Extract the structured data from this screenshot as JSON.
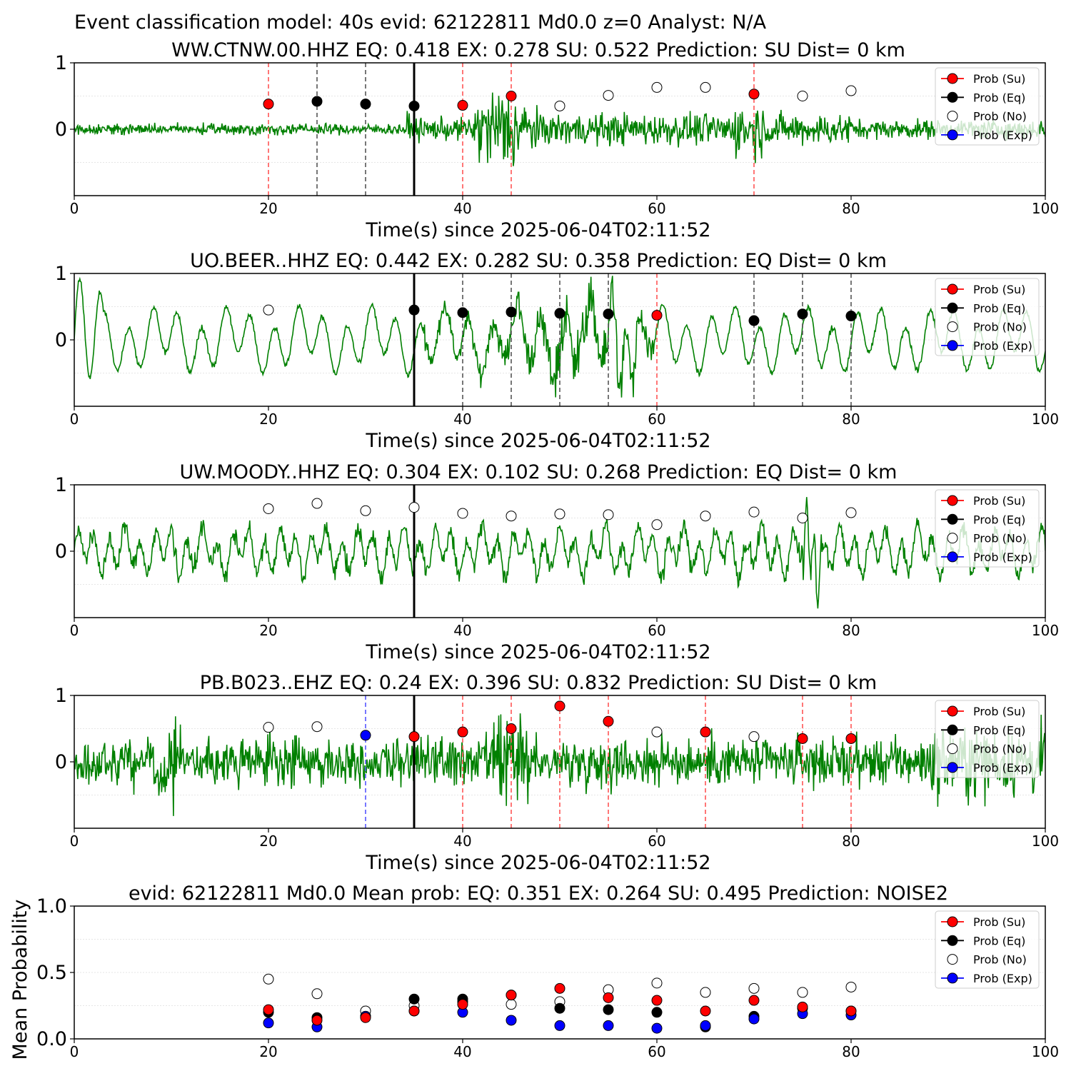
{
  "suptitle": "Event classification model: 40s evid: 62122811 Md0.0 z=0 Analyst: N/A",
  "colors": {
    "trace": "#008000",
    "su": "#ff0000",
    "eq": "#000000",
    "no": "#ffffff",
    "exp": "#0000ff",
    "su_line": "#ff5555",
    "eq_line": "#555555",
    "exp_line": "#5555ff",
    "pick_line": "#000000"
  },
  "legend": [
    "Prob (Su)",
    "Prob (Eq)",
    "Prob (No)",
    "Prob (Exp)"
  ],
  "chart_data": [
    {
      "type": "scatter",
      "title": "WW.CTNW.00.HHZ   EQ: 0.418  EX: 0.278  SU: 0.522   Prediction: SU    Dist= 0 km",
      "xlabel": "Time(s) since 2025-06-04T02:11:52",
      "xlim": [
        0,
        100
      ],
      "ylim": [
        -1,
        1
      ],
      "xticks": [
        "0",
        "20",
        "40",
        "60",
        "80",
        "100"
      ],
      "yticks": [
        "1",
        "0"
      ],
      "pick_time": 35,
      "trace_style": "high-frequency",
      "points": [
        {
          "x": 20,
          "y": 0.38,
          "class": "su"
        },
        {
          "x": 25,
          "y": 0.42,
          "class": "eq"
        },
        {
          "x": 30,
          "y": 0.38,
          "class": "eq"
        },
        {
          "x": 35,
          "y": 0.35,
          "class": "eq"
        },
        {
          "x": 40,
          "y": 0.36,
          "class": "su"
        },
        {
          "x": 45,
          "y": 0.5,
          "class": "su"
        },
        {
          "x": 50,
          "y": 0.35,
          "class": "no"
        },
        {
          "x": 55,
          "y": 0.51,
          "class": "no"
        },
        {
          "x": 60,
          "y": 0.63,
          "class": "no"
        },
        {
          "x": 65,
          "y": 0.63,
          "class": "no"
        },
        {
          "x": 70,
          "y": 0.53,
          "class": "su"
        },
        {
          "x": 75,
          "y": 0.5,
          "class": "no"
        },
        {
          "x": 80,
          "y": 0.58,
          "class": "no"
        }
      ],
      "vlines": [
        {
          "x": 20,
          "class": "su"
        },
        {
          "x": 25,
          "class": "eq"
        },
        {
          "x": 30,
          "class": "eq"
        },
        {
          "x": 40,
          "class": "su"
        },
        {
          "x": 45,
          "class": "su"
        },
        {
          "x": 70,
          "class": "su"
        }
      ]
    },
    {
      "type": "scatter",
      "title": "UO.BEER..HHZ   EQ: 0.442  EX: 0.282  SU: 0.358   Prediction: EQ    Dist= 0 km",
      "xlabel": "Time(s) since 2025-06-04T02:11:52",
      "xlim": [
        0,
        100
      ],
      "ylim": [
        -1,
        1
      ],
      "xticks": [
        "0",
        "20",
        "40",
        "60",
        "80",
        "100"
      ],
      "yticks": [
        "1",
        "0"
      ],
      "pick_time": 35,
      "trace_style": "low-frequency",
      "points": [
        {
          "x": 20,
          "y": 0.45,
          "class": "no"
        },
        {
          "x": 35,
          "y": 0.45,
          "class": "eq"
        },
        {
          "x": 40,
          "y": 0.41,
          "class": "eq"
        },
        {
          "x": 45,
          "y": 0.42,
          "class": "eq"
        },
        {
          "x": 50,
          "y": 0.4,
          "class": "eq"
        },
        {
          "x": 55,
          "y": 0.39,
          "class": "eq"
        },
        {
          "x": 60,
          "y": 0.37,
          "class": "su"
        },
        {
          "x": 70,
          "y": 0.29,
          "class": "eq"
        },
        {
          "x": 75,
          "y": 0.39,
          "class": "eq"
        },
        {
          "x": 80,
          "y": 0.36,
          "class": "eq"
        }
      ],
      "vlines": [
        {
          "x": 40,
          "class": "eq"
        },
        {
          "x": 45,
          "class": "eq"
        },
        {
          "x": 50,
          "class": "eq"
        },
        {
          "x": 55,
          "class": "eq"
        },
        {
          "x": 60,
          "class": "su"
        },
        {
          "x": 70,
          "class": "eq"
        },
        {
          "x": 75,
          "class": "eq"
        },
        {
          "x": 80,
          "class": "eq"
        }
      ]
    },
    {
      "type": "scatter",
      "title": "UW.MOODY..HHZ   EQ: 0.304  EX: 0.102  SU: 0.268   Prediction: EQ    Dist= 0 km",
      "xlabel": "Time(s) since 2025-06-04T02:11:52",
      "xlim": [
        0,
        100
      ],
      "ylim": [
        -1,
        1
      ],
      "xticks": [
        "0",
        "20",
        "40",
        "60",
        "80",
        "100"
      ],
      "yticks": [
        "1",
        "0"
      ],
      "pick_time": 35,
      "trace_style": "mid-frequency",
      "points": [
        {
          "x": 20,
          "y": 0.64,
          "class": "no"
        },
        {
          "x": 25,
          "y": 0.72,
          "class": "no"
        },
        {
          "x": 30,
          "y": 0.61,
          "class": "no"
        },
        {
          "x": 35,
          "y": 0.66,
          "class": "no"
        },
        {
          "x": 40,
          "y": 0.57,
          "class": "no"
        },
        {
          "x": 45,
          "y": 0.53,
          "class": "no"
        },
        {
          "x": 50,
          "y": 0.56,
          "class": "no"
        },
        {
          "x": 55,
          "y": 0.55,
          "class": "no"
        },
        {
          "x": 60,
          "y": 0.4,
          "class": "no"
        },
        {
          "x": 65,
          "y": 0.53,
          "class": "no"
        },
        {
          "x": 70,
          "y": 0.59,
          "class": "no"
        },
        {
          "x": 75,
          "y": 0.5,
          "class": "no"
        },
        {
          "x": 80,
          "y": 0.58,
          "class": "no"
        }
      ],
      "vlines": []
    },
    {
      "type": "scatter",
      "title": "PB.B023..EHZ   EQ: 0.24  EX: 0.396  SU: 0.832   Prediction: SU    Dist= 0 km",
      "xlabel": "Time(s) since 2025-06-04T02:11:52",
      "xlim": [
        0,
        100
      ],
      "ylim": [
        -1,
        1
      ],
      "xticks": [
        "0",
        "20",
        "40",
        "60",
        "80",
        "100"
      ],
      "yticks": [
        "1",
        "0"
      ],
      "pick_time": 35,
      "trace_style": "high-frequency-2",
      "points": [
        {
          "x": 20,
          "y": 0.52,
          "class": "no"
        },
        {
          "x": 25,
          "y": 0.53,
          "class": "no"
        },
        {
          "x": 30,
          "y": 0.4,
          "class": "exp"
        },
        {
          "x": 35,
          "y": 0.38,
          "class": "su"
        },
        {
          "x": 40,
          "y": 0.45,
          "class": "su"
        },
        {
          "x": 45,
          "y": 0.5,
          "class": "su"
        },
        {
          "x": 50,
          "y": 0.84,
          "class": "su"
        },
        {
          "x": 55,
          "y": 0.61,
          "class": "su"
        },
        {
          "x": 60,
          "y": 0.45,
          "class": "no"
        },
        {
          "x": 65,
          "y": 0.45,
          "class": "su"
        },
        {
          "x": 70,
          "y": 0.38,
          "class": "no"
        },
        {
          "x": 75,
          "y": 0.35,
          "class": "su"
        },
        {
          "x": 80,
          "y": 0.35,
          "class": "su"
        }
      ],
      "vlines": [
        {
          "x": 30,
          "class": "exp"
        },
        {
          "x": 40,
          "class": "su"
        },
        {
          "x": 45,
          "class": "su"
        },
        {
          "x": 50,
          "class": "su"
        },
        {
          "x": 55,
          "class": "su"
        },
        {
          "x": 65,
          "class": "su"
        },
        {
          "x": 75,
          "class": "su"
        },
        {
          "x": 80,
          "class": "su"
        }
      ]
    },
    {
      "type": "scatter",
      "title": "evid: 62122811  Md0.0   Mean prob:   EQ: 0.351  EX: 0.264  SU: 0.495   Prediction: NOISE2",
      "xlabel": "",
      "ylabel": "Mean Probability",
      "xlim": [
        0,
        100
      ],
      "ylim": [
        0,
        1
      ],
      "xticks": [
        "0",
        "20",
        "40",
        "60",
        "80",
        "100"
      ],
      "yticks": [
        "1.0",
        "0.5",
        "0.0"
      ],
      "series": [
        {
          "class": "no",
          "x": [
            20,
            25,
            30,
            35,
            40,
            45,
            50,
            55,
            60,
            65,
            70,
            75,
            80
          ],
          "y": [
            0.45,
            0.34,
            0.21,
            0.25,
            0.28,
            0.26,
            0.28,
            0.37,
            0.42,
            0.35,
            0.38,
            0.35,
            0.39
          ]
        },
        {
          "class": "eq",
          "x": [
            20,
            25,
            30,
            35,
            40,
            45,
            50,
            55,
            60,
            65,
            70,
            75,
            80
          ],
          "y": [
            0.2,
            0.16,
            0.17,
            0.3,
            0.3,
            0.33,
            0.23,
            0.22,
            0.2,
            0.09,
            0.17,
            0.23,
            0.21
          ]
        },
        {
          "class": "exp",
          "x": [
            20,
            25,
            30,
            35,
            40,
            45,
            50,
            55,
            60,
            65,
            70,
            75,
            80
          ],
          "y": [
            0.12,
            0.09,
            0.17,
            0.21,
            0.2,
            0.14,
            0.1,
            0.1,
            0.08,
            0.1,
            0.15,
            0.19,
            0.18
          ]
        },
        {
          "class": "su",
          "x": [
            20,
            25,
            30,
            35,
            40,
            45,
            50,
            55,
            60,
            65,
            70,
            75,
            80
          ],
          "y": [
            0.22,
            0.14,
            0.16,
            0.21,
            0.26,
            0.33,
            0.38,
            0.31,
            0.29,
            0.21,
            0.29,
            0.24,
            0.21
          ]
        }
      ]
    }
  ]
}
